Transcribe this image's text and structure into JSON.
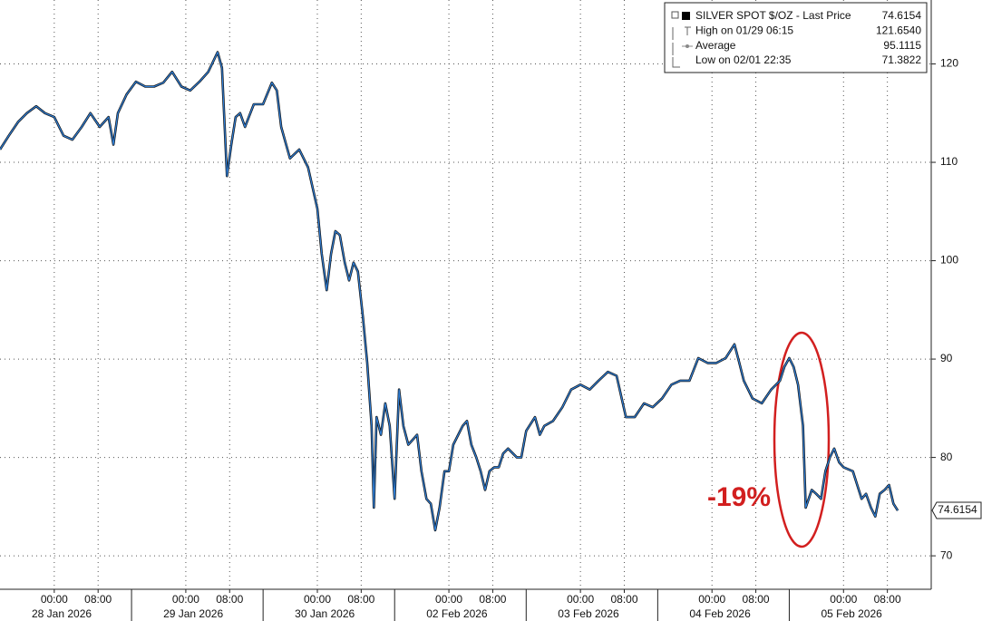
{
  "chart_data": {
    "type": "line",
    "legend": [
      {
        "label": "SILVER SPOT $/OZ - Last Price",
        "value": {
          "value": 74.6154,
          "label": "74.6154"
        }
      },
      {
        "label": "High on 01/29 06:15",
        "value": {
          "value": 121.654,
          "label": "121.6540"
        }
      },
      {
        "label": "Average",
        "value": {
          "value": 95.1115,
          "label": "95.1115"
        }
      },
      {
        "label": "Low on 02/01 22:35",
        "value": {
          "value": 71.3822,
          "label": "71.3822"
        }
      }
    ],
    "annotation": "-19%",
    "day_labels": [
      "28 Jan 2026",
      "29 Jan 2026",
      "30 Jan 2026",
      "02 Feb 2026",
      "03 Feb 2026",
      "04 Feb 2026",
      "05 Feb 2026"
    ],
    "xlim": [
      -9.9,
      160
    ],
    "ylim": [
      66.6,
      126.5
    ],
    "yticks": [
      70,
      80,
      90,
      100,
      110,
      120
    ],
    "xticks": [
      {
        "value": 0,
        "label": "00:00"
      },
      {
        "value": 8,
        "label": "08:00"
      },
      {
        "value": 24,
        "label": "00:00"
      },
      {
        "value": 32,
        "label": "08:00"
      },
      {
        "value": 48,
        "label": "00:00"
      },
      {
        "value": 56,
        "label": "08:00"
      },
      {
        "value": 72,
        "label": "00:00"
      },
      {
        "value": 80,
        "label": "08:00"
      },
      {
        "value": 96,
        "label": "00:00"
      },
      {
        "value": 104,
        "label": "08:00"
      },
      {
        "value": 120,
        "label": "00:00"
      },
      {
        "value": 128,
        "label": "08:00"
      },
      {
        "value": 144,
        "label": "00:00"
      },
      {
        "value": 152,
        "label": "08:00"
      }
    ],
    "grid": true,
    "color": "#2f7fd8",
    "x": [
      -9.9,
      -8.3,
      -6.6,
      -5.0,
      -3.3,
      -1.7,
      0,
      1.7,
      3.3,
      5.0,
      6.6,
      8.3,
      9.9,
      10.8,
      11.6,
      13.2,
      14.9,
      16.6,
      18.2,
      19.9,
      21.5,
      23.2,
      24.8,
      26.5,
      28.1,
      29.8,
      30.6,
      31.5,
      32.3,
      33.1,
      33.9,
      34.8,
      36.4,
      38.1,
      39.7,
      40.6,
      41.4,
      43.0,
      44.7,
      46.3,
      48.0,
      48.8,
      49.7,
      50.5,
      51.3,
      52.1,
      53.0,
      53.8,
      54.6,
      55.4,
      56.3,
      57.1,
      57.9,
      58.3,
      58.8,
      59.6,
      60.4,
      61.2,
      62.1,
      62.9,
      63.7,
      64.6,
      66.2,
      67.0,
      67.9,
      68.7,
      69.5,
      70.3,
      71.2,
      72.0,
      72.8,
      74.5,
      75.3,
      76.1,
      77.0,
      77.8,
      78.6,
      79.4,
      80.3,
      81.1,
      81.9,
      82.8,
      84.4,
      85.2,
      86.1,
      87.7,
      88.6,
      89.4,
      91.0,
      92.7,
      94.3,
      96.0,
      97.7,
      99.3,
      101.0,
      102.6,
      104.3,
      105.9,
      107.6,
      109.2,
      110.9,
      112.6,
      114.2,
      115.9,
      117.5,
      119.2,
      120.8,
      122.5,
      124.1,
      125.0,
      125.8,
      127.4,
      129.1,
      130.8,
      132.4,
      133.2,
      134.1,
      134.9,
      135.7,
      136.6,
      137.1,
      138.2,
      139.0,
      139.9,
      140.7,
      141.5,
      142.3,
      143.2,
      144.0,
      145.7,
      146.5,
      147.3,
      148.1,
      149.0,
      149.8,
      150.6,
      151.5,
      152.3,
      153.1,
      153.9
    ],
    "values": [
      111.3,
      112.7,
      114.1,
      115.0,
      115.7,
      115.0,
      114.6,
      112.7,
      112.3,
      113.6,
      115.0,
      113.6,
      114.6,
      111.8,
      115.0,
      116.9,
      118.2,
      117.7,
      117.7,
      118.1,
      119.2,
      117.7,
      117.3,
      118.2,
      119.2,
      121.2,
      119.6,
      108.6,
      111.8,
      114.6,
      115.0,
      113.6,
      115.9,
      115.9,
      118.1,
      117.3,
      113.6,
      110.4,
      111.3,
      109.5,
      105.3,
      100.7,
      97.0,
      100.7,
      103.0,
      102.6,
      99.8,
      98.0,
      99.8,
      98.9,
      94.3,
      89.6,
      83.2,
      74.9,
      84.1,
      82.3,
      85.5,
      83.2,
      75.8,
      86.9,
      83.2,
      81.3,
      82.3,
      78.6,
      75.8,
      75.3,
      72.6,
      74.9,
      78.6,
      78.6,
      81.3,
      83.2,
      83.7,
      81.3,
      80.0,
      78.6,
      76.7,
      78.6,
      79.0,
      79.0,
      80.4,
      80.9,
      80.0,
      80.0,
      82.7,
      84.1,
      82.3,
      83.2,
      83.7,
      85.1,
      86.9,
      87.4,
      86.9,
      87.8,
      88.7,
      88.3,
      84.1,
      84.1,
      85.5,
      85.1,
      86.0,
      87.4,
      87.8,
      87.8,
      90.1,
      89.6,
      89.6,
      90.1,
      91.5,
      89.6,
      87.8,
      86.0,
      85.5,
      86.9,
      87.8,
      89.2,
      90.1,
      89.2,
      87.4,
      83.2,
      74.9,
      76.7,
      76.3,
      75.8,
      78.6,
      80.0,
      80.9,
      79.5,
      79.0,
      78.6,
      77.2,
      75.8,
      76.3,
      74.9,
      74.0,
      76.3,
      76.7,
      77.2,
      75.3,
      74.6
    ]
  }
}
